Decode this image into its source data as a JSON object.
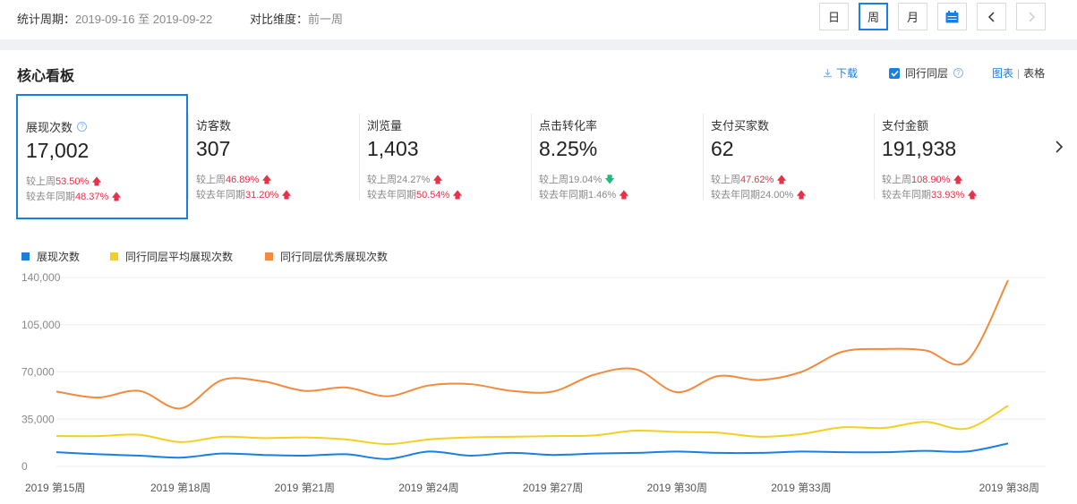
{
  "header": {
    "period_label": "统计周期：",
    "period_value": "2019-09-16 至 2019-09-22",
    "compare_label": "对比维度：",
    "compare_value": "前一周",
    "buttons": {
      "day": "日",
      "week": "周",
      "month": "月"
    },
    "selected_granularity": "周"
  },
  "panel": {
    "title": "核心看板",
    "download": "下载",
    "peer_label": "同行同层",
    "peer_checked": true,
    "view_chart": "图表",
    "view_table": "表格"
  },
  "metrics": [
    {
      "name": "展现次数",
      "value": "17,002",
      "wow_label": "较上周",
      "wow": "53.50%",
      "wow_dir": "up",
      "yoy_label": "较去年同期",
      "yoy": "48.37%",
      "yoy_dir": "up",
      "help": true
    },
    {
      "name": "访客数",
      "value": "307",
      "wow_label": "较上周",
      "wow": "46.89%",
      "wow_dir": "up",
      "yoy_label": "较去年同期",
      "yoy": "31.20%",
      "yoy_dir": "up"
    },
    {
      "name": "浏览量",
      "value": "1,403",
      "wow_label": "较上周",
      "wow": "24.27%",
      "wow_dir": "up",
      "yoy_label": "较去年同期",
      "yoy": "50.54%",
      "yoy_dir": "up"
    },
    {
      "name": "点击转化率",
      "value": "8.25%",
      "wow_label": "较上周",
      "wow": "19.04%",
      "wow_dir": "down",
      "yoy_label": "较去年同期",
      "yoy": "1.46%",
      "yoy_dir": "up"
    },
    {
      "name": "支付买家数",
      "value": "62",
      "wow_label": "较上周",
      "wow": "47.62%",
      "wow_dir": "up",
      "yoy_label": "较去年同期",
      "yoy": "24.00%",
      "yoy_dir": "up"
    },
    {
      "name": "支付金额",
      "value": "191,938",
      "wow_label": "较上周",
      "wow": "108.90%",
      "wow_dir": "up",
      "yoy_label": "较去年同期",
      "yoy": "33.93%",
      "yoy_dir": "up"
    }
  ],
  "colors": {
    "accent": "#1a7fe4",
    "up": "#e4324a",
    "down": "#1abc7b"
  },
  "chart_data": {
    "type": "line",
    "x": [
      "2019 第15周",
      "2019 第16周",
      "2019 第17周",
      "2019 第18周",
      "2019 第19周",
      "2019 第20周",
      "2019 第21周",
      "2019 第22周",
      "2019 第23周",
      "2019 第24周",
      "2019 第25周",
      "2019 第26周",
      "2019 第27周",
      "2019 第28周",
      "2019 第29周",
      "2019 第30周",
      "2019 第31周",
      "2019 第32周",
      "2019 第33周",
      "2019 第34周",
      "2019 第35周",
      "2019 第36周",
      "2019 第37周",
      "2019 第38周"
    ],
    "x_tick_labels": [
      "2019 第15周",
      "2019 第18周",
      "2019 第21周",
      "2019 第24周",
      "2019 第27周",
      "2019 第30周",
      "2019 第33周",
      "2019 第38周"
    ],
    "x_tick_indices": [
      0,
      3,
      6,
      9,
      12,
      15,
      18,
      23
    ],
    "y_ticks": [
      "0",
      "35,000",
      "70,000",
      "105,000",
      "140,000"
    ],
    "ylim": [
      0,
      140000
    ],
    "legend_position": "top-left",
    "grid": true,
    "series": [
      {
        "name": "展现次数",
        "color": "#1a7fe4",
        "values": [
          10500,
          9000,
          8000,
          6500,
          9500,
          8500,
          8000,
          9000,
          5500,
          11000,
          8000,
          10000,
          8500,
          9500,
          10000,
          11000,
          10000,
          10000,
          11000,
          10500,
          10500,
          11500,
          11000,
          17002
        ]
      },
      {
        "name": "同行同层平均展现次数",
        "color": "#f5cf1f",
        "values": [
          22500,
          22500,
          23500,
          18000,
          22000,
          21000,
          21500,
          20000,
          16500,
          20000,
          21500,
          22000,
          22500,
          23000,
          26500,
          25500,
          25000,
          22000,
          24000,
          29000,
          28500,
          33000,
          28000,
          45000
        ]
      },
      {
        "name": "同行同层优秀展现次数",
        "color": "#f38a3c",
        "values": [
          55500,
          51000,
          56000,
          43000,
          64000,
          63000,
          56000,
          58500,
          52000,
          60000,
          61000,
          56000,
          55500,
          68000,
          72000,
          55000,
          67000,
          64000,
          70000,
          85000,
          87000,
          86000,
          78000,
          138000
        ]
      }
    ]
  }
}
